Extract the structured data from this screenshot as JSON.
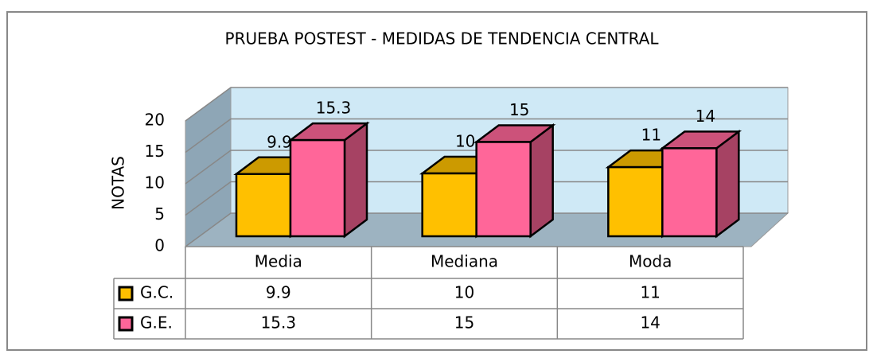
{
  "chart_data": {
    "type": "bar3d",
    "title": "PRUEBA POSTEST - MEDIDAS DE TENDENCIA CENTRAL",
    "ylabel": "NOTAS",
    "categories": [
      "Media",
      "Mediana",
      "Moda"
    ],
    "series": [
      {
        "name": "G.C.",
        "color": "#ffc000",
        "values": [
          9.9,
          10,
          11
        ]
      },
      {
        "name": "G.E.",
        "color": "#ff6699",
        "values": [
          15.3,
          15,
          14
        ]
      }
    ],
    "ylim": [
      0,
      20
    ],
    "yticks": [
      0,
      5,
      10,
      15,
      20
    ],
    "grid": true,
    "data_table": true
  }
}
